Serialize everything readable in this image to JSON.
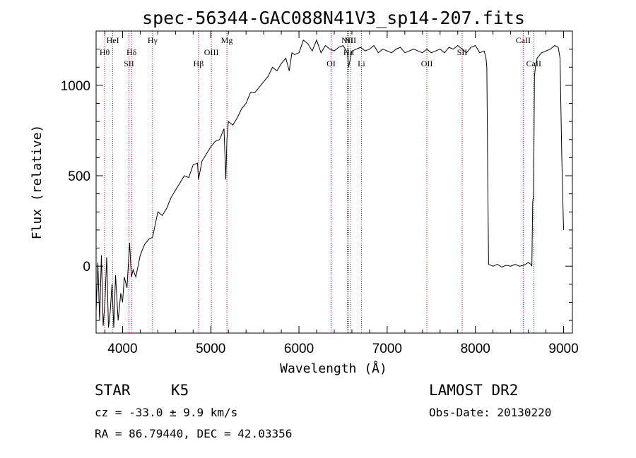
{
  "chart_data": {
    "type": "line",
    "title": "spec-56344-GAC088N41V3_sp14-207.fits",
    "xlabel": "Wavelength (Å)",
    "ylabel": "Flux (relative)",
    "xlim": [
      3700,
      9100
    ],
    "ylim": [
      -370,
      1300
    ],
    "x_ticks": [
      4000,
      5000,
      6000,
      7000,
      8000,
      9000
    ],
    "x_tick_labels": [
      "4000",
      "5000",
      "6000",
      "7000",
      "8000",
      "9000"
    ],
    "y_ticks": [
      0,
      500,
      1000
    ],
    "y_tick_labels": [
      "0",
      "500",
      "1000"
    ],
    "series": [
      {
        "color": "#000000",
        "x": [
          3700,
          3720,
          3740,
          3760,
          3780,
          3800,
          3820,
          3840,
          3860,
          3880,
          3900,
          3920,
          3950,
          3980,
          4000,
          4020,
          4050,
          4080,
          4100,
          4120,
          4150,
          4200,
          4250,
          4300,
          4340,
          4400,
          4450,
          4500,
          4550,
          4600,
          4650,
          4700,
          4750,
          4800,
          4850,
          4861,
          4900,
          4950,
          5000,
          5050,
          5100,
          5150,
          5170,
          5183,
          5200,
          5250,
          5300,
          5350,
          5400,
          5450,
          5500,
          5550,
          5600,
          5650,
          5700,
          5750,
          5800,
          5850,
          5890,
          5920,
          5950,
          6000,
          6050,
          6100,
          6150,
          6200,
          6250,
          6300,
          6350,
          6400,
          6450,
          6500,
          6550,
          6563,
          6600,
          6650,
          6700,
          6750,
          6800,
          6850,
          6900,
          6950,
          7000,
          7050,
          7100,
          7150,
          7200,
          7250,
          7300,
          7350,
          7400,
          7450,
          7500,
          7550,
          7600,
          7650,
          7700,
          7750,
          7800,
          7850,
          7900,
          7950,
          8000,
          8050,
          8100,
          8120,
          8130,
          8140,
          8150,
          8200,
          8250,
          8300,
          8350,
          8400,
          8450,
          8500,
          8550,
          8600,
          8630,
          8640,
          8650,
          8660,
          8670,
          8680,
          8700,
          8750,
          8800,
          8850,
          8900,
          8940,
          8960,
          8980,
          9000
        ],
        "y": [
          -250,
          20,
          -300,
          60,
          -330,
          -200,
          50,
          -340,
          -250,
          -100,
          -340,
          -50,
          -300,
          -150,
          -200,
          -60,
          -120,
          130,
          -60,
          -20,
          -60,
          60,
          120,
          150,
          160,
          300,
          280,
          320,
          380,
          420,
          460,
          500,
          490,
          560,
          570,
          480,
          580,
          620,
          660,
          690,
          700,
          760,
          480,
          700,
          800,
          780,
          820,
          870,
          900,
          960,
          960,
          990,
          1020,
          1050,
          1100,
          1080,
          1120,
          1150,
          1080,
          1180,
          1170,
          1180,
          1250,
          1230,
          1190,
          1250,
          1180,
          1220,
          1200,
          1190,
          1210,
          1220,
          1180,
          1100,
          1190,
          1200,
          1210,
          1190,
          1200,
          1220,
          1180,
          1200,
          1190,
          1180,
          1200,
          1210,
          1180,
          1190,
          1200,
          1190,
          1180,
          1200,
          1180,
          1190,
          1200,
          1180,
          1210,
          1200,
          1220,
          1200,
          1180,
          1210,
          1220,
          1180,
          1190,
          1150,
          1100,
          500,
          10,
          0,
          10,
          -5,
          5,
          0,
          10,
          0,
          5,
          20,
          10,
          0,
          350,
          400,
          1050,
          1100,
          1150,
          1180,
          1190,
          1200,
          1220,
          1210,
          1150,
          600,
          200
        ]
      }
    ],
    "spectral_lines": [
      {
        "label": "Hθ",
        "x": 3797,
        "row": 2
      },
      {
        "label": "HeI",
        "x": 3889,
        "row": 1
      },
      {
        "label": "Hδ",
        "x": 4102,
        "row": 2
      },
      {
        "label": "SII",
        "x": 4072,
        "row": 3
      },
      {
        "label": "Hγ",
        "x": 4340,
        "row": 1
      },
      {
        "label": "Hβ",
        "x": 4861,
        "row": 3
      },
      {
        "label": "OIII",
        "x": 5007,
        "row": 2
      },
      {
        "label": "Mg",
        "x": 5183,
        "row": 1
      },
      {
        "label": "OI",
        "x": 6364,
        "row": 3
      },
      {
        "label": "NII",
        "x": 6548,
        "row": 1
      },
      {
        "label": "Hα",
        "x": 6563,
        "row": 2
      },
      {
        "label": "NII",
        "x": 6583,
        "row": 1
      },
      {
        "label": "Li",
        "x": 6708,
        "row": 3
      },
      {
        "label": "OII",
        "x": 7450,
        "row": 3
      },
      {
        "label": "SII",
        "x": 7850,
        "row": 2
      },
      {
        "label": "CaII",
        "x": 8542,
        "row": 1
      },
      {
        "label": "CaII",
        "x": 8662,
        "row": 3
      }
    ],
    "line_marker_color": "#cc0000"
  },
  "info": {
    "class": "STAR",
    "subclass": "K5",
    "survey": "LAMOST DR2",
    "cz": "cz = -33.0 ± 9.9 km/s",
    "obs_date": "Obs-Date: 20130220",
    "coords": "RA =  86.79440, DEC =  42.03356"
  }
}
